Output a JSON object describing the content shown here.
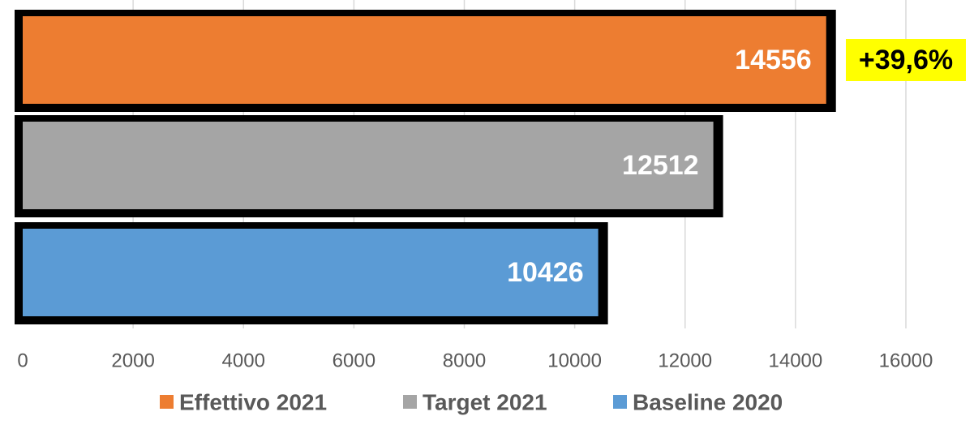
{
  "chart_data": {
    "type": "barh",
    "series": [
      {
        "name": "Effettivo 2021",
        "color": "#ed7d31",
        "values": [
          14556
        ]
      },
      {
        "name": "Target 2021",
        "color": "#a5a5a5",
        "values": [
          12512
        ]
      },
      {
        "name": "Baseline 2020",
        "color": "#5b9bd5",
        "values": [
          10426
        ]
      }
    ],
    "annotation": "+39,6%",
    "xlim": [
      0,
      16000
    ],
    "xticks": [
      0,
      2000,
      4000,
      6000,
      8000,
      10000,
      12000,
      14000,
      16000
    ],
    "grid": true,
    "legend": "bottom"
  }
}
